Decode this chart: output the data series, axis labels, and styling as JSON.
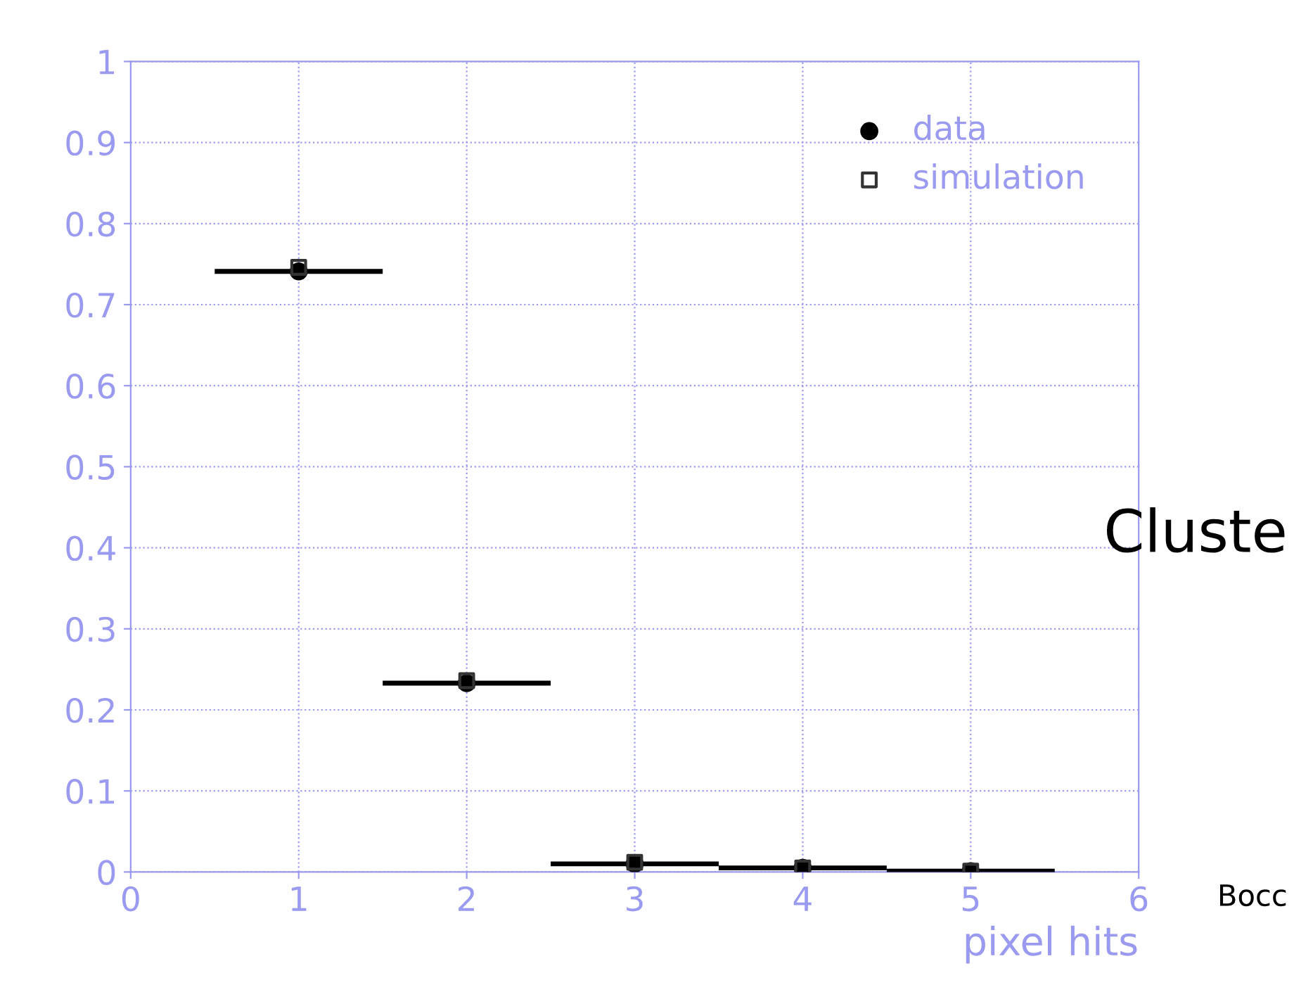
{
  "chart_data": {
    "type": "scatter",
    "xlabel": "pixel hits",
    "x": [
      1,
      2,
      3,
      4,
      5
    ],
    "series": [
      {
        "name": "data",
        "color": "#000000",
        "marker": "circle",
        "values": [
          0.741,
          0.233,
          0.01,
          0.005,
          0.001
        ],
        "xerrors": [
          0.5,
          0.5,
          0.5,
          0.5,
          0.5
        ]
      },
      {
        "name": "simulation",
        "color": "#333333",
        "marker": "square",
        "values": [
          0.746,
          0.236,
          0.012,
          0.005,
          0.001
        ]
      }
    ],
    "xlim": [
      0,
      6
    ],
    "xticks": [
      0,
      1,
      2,
      3,
      4,
      5,
      6
    ],
    "ylim": [
      0,
      1
    ],
    "yticks": [
      0,
      0.1,
      0.2,
      0.3,
      0.4,
      0.5,
      0.6,
      0.7,
      0.8,
      0.9,
      1
    ],
    "grid": true,
    "legend": "top right",
    "annotations": [
      "Cluste",
      "Bocc"
    ]
  }
}
